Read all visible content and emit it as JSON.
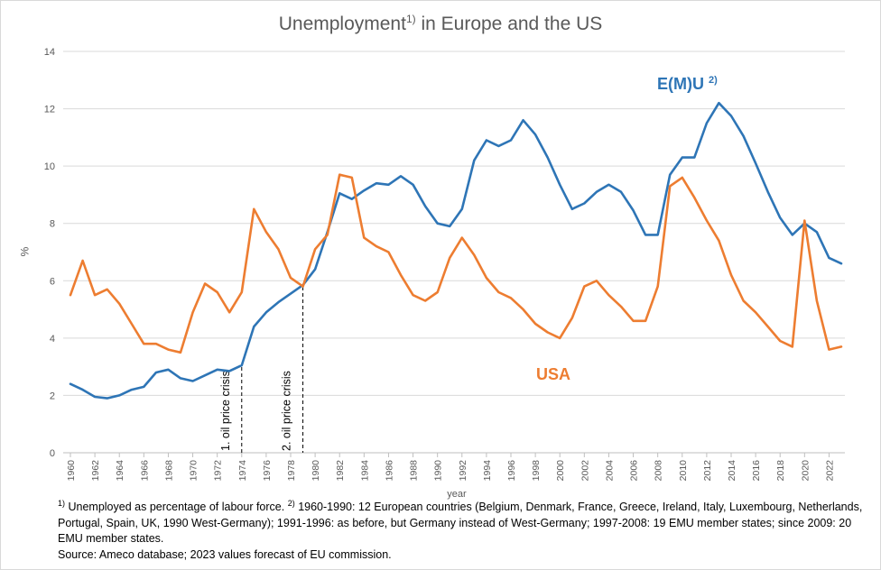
{
  "title": {
    "main": "Unemployment",
    "sup": "1)",
    "rest": " in Europe and the US"
  },
  "series_labels": {
    "emu": "E(M)U",
    "emu_sup": "2)",
    "usa": "USA"
  },
  "colors": {
    "emu": "#2e75b6",
    "usa": "#ed7d31",
    "grid": "#d9d9d9"
  },
  "annotations": {
    "oil1": "1. oil price crisis",
    "oil2": "2. oil price crisis"
  },
  "footnote": {
    "sup1": "1)",
    "text1": " Unemployed as percentage of labour force. ",
    "sup2": "2)",
    "text2": " 1960-1990:  12 European countries (Belgium, Denmark, France, Greece, Ireland, Italy, Luxembourg, Netherlands, Portugal, Spain, UK, 1990 West-Germany); 1991-1996:  as before, but Germany instead of West-Germany; 1997-2008:  19 EMU  member states; since 2009: 20  EMU  member states.",
    "source": "Source: Ameco database; 2023  values forecast of EU commission."
  },
  "chart_data": {
    "type": "line",
    "title": "Unemployment1) in Europe and the US",
    "xlabel": "year",
    "ylabel": "%",
    "ylim": [
      0,
      14
    ],
    "yticks": [
      0,
      2,
      4,
      6,
      8,
      10,
      12,
      14
    ],
    "xlim": [
      1960,
      2023
    ],
    "xticks": [
      1960,
      1962,
      1964,
      1966,
      1968,
      1970,
      1972,
      1974,
      1976,
      1978,
      1980,
      1982,
      1984,
      1986,
      1988,
      1990,
      1992,
      1994,
      1996,
      1998,
      2000,
      2002,
      2004,
      2006,
      2008,
      2010,
      2012,
      2014,
      2016,
      2018,
      2020,
      2022
    ],
    "grid": "horizontal",
    "x": [
      1960,
      1961,
      1962,
      1963,
      1964,
      1965,
      1966,
      1967,
      1968,
      1969,
      1970,
      1971,
      1972,
      1973,
      1974,
      1975,
      1976,
      1977,
      1978,
      1979,
      1980,
      1981,
      1982,
      1983,
      1984,
      1985,
      1986,
      1987,
      1988,
      1989,
      1990,
      1991,
      1992,
      1993,
      1994,
      1995,
      1996,
      1997,
      1998,
      1999,
      2000,
      2001,
      2002,
      2003,
      2004,
      2005,
      2006,
      2007,
      2008,
      2009,
      2010,
      2011,
      2012,
      2013,
      2014,
      2015,
      2016,
      2017,
      2018,
      2019,
      2020,
      2021,
      2022,
      2023
    ],
    "series": [
      {
        "name": "E(M)U 2)",
        "values": [
          2.4,
          2.2,
          1.95,
          1.9,
          2.0,
          2.2,
          2.3,
          2.8,
          2.9,
          2.6,
          2.5,
          2.7,
          2.9,
          2.85,
          3.05,
          4.4,
          4.9,
          5.25,
          5.55,
          5.85,
          6.4,
          7.7,
          9.05,
          8.85,
          9.15,
          9.4,
          9.35,
          9.65,
          9.35,
          8.6,
          8.0,
          7.9,
          8.5,
          10.2,
          10.9,
          10.7,
          10.9,
          11.6,
          11.1,
          10.3,
          9.35,
          8.5,
          8.7,
          9.1,
          9.35,
          9.1,
          8.45,
          7.6,
          7.6,
          9.7,
          10.3,
          10.3,
          11.5,
          12.2,
          11.75,
          11.05,
          10.1,
          9.1,
          8.2,
          7.6,
          8.0,
          7.7,
          6.8,
          6.6
        ]
      },
      {
        "name": "USA",
        "values": [
          5.5,
          6.7,
          5.5,
          5.7,
          5.2,
          4.5,
          3.8,
          3.8,
          3.6,
          3.5,
          4.9,
          5.9,
          5.6,
          4.9,
          5.6,
          8.5,
          7.7,
          7.1,
          6.1,
          5.8,
          7.1,
          7.6,
          9.7,
          9.6,
          7.5,
          7.2,
          7.0,
          6.2,
          5.5,
          5.3,
          5.6,
          6.8,
          7.5,
          6.9,
          6.1,
          5.6,
          5.4,
          5.0,
          4.5,
          4.2,
          4.0,
          4.7,
          5.8,
          6.0,
          5.5,
          5.1,
          4.6,
          4.6,
          5.8,
          9.3,
          9.6,
          8.9,
          8.1,
          7.4,
          6.2,
          5.3,
          4.9,
          4.4,
          3.9,
          3.7,
          8.1,
          5.3,
          3.6,
          3.7
        ]
      }
    ],
    "markers": [
      {
        "x": 1974,
        "label": "1. oil price crisis"
      },
      {
        "x": 1979,
        "label": "2. oil price crisis"
      }
    ]
  }
}
